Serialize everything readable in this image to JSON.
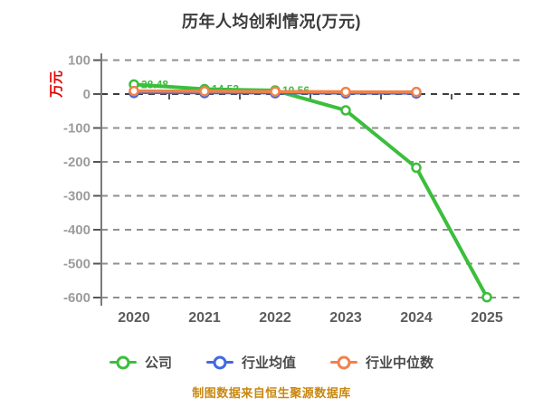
{
  "chart_data": {
    "type": "line",
    "title": "历年人均创利情况(万元)",
    "ylabel": "万元",
    "ylabel_color": "#e60000",
    "footnote": "制图数据来自恒生聚源数据库",
    "footnote_color": "#c8870f",
    "categories": [
      "2020",
      "2021",
      "2022",
      "2023",
      "2024",
      "2025"
    ],
    "ylim": [
      -600,
      100
    ],
    "yticks": [
      100,
      0,
      -100,
      -200,
      -300,
      -400,
      -500,
      -600
    ],
    "grid": "dashed horizontal",
    "legend_position": "bottom",
    "series": [
      {
        "key": "company",
        "name": "公司",
        "color": "#3cbe3c",
        "values": [
          28.48,
          14.53,
          10.56,
          -48.0,
          -217.0,
          -599.0
        ],
        "point_labels": [
          "28.48",
          "14.53",
          "10.56",
          "",
          "",
          ""
        ]
      },
      {
        "key": "industry-average",
        "name": "行业均值",
        "color": "#4169e1",
        "values": [
          3.2,
          2.8,
          2.4,
          2.0,
          1.8,
          null
        ],
        "point_labels": [
          "",
          "",
          "",
          "",
          "",
          ""
        ]
      },
      {
        "key": "industry-median",
        "name": "行业中位数",
        "color": "#f0824b",
        "values": [
          9.0,
          8.2,
          7.4,
          6.5,
          6.2,
          null
        ],
        "point_labels": [
          "",
          "",
          "",
          "",
          "",
          ""
        ]
      }
    ],
    "axis_colors": {
      "y_tick_label": "#9c9c9c",
      "x_tick_label": "#5c5c5c",
      "grid_line": "#8f8f8f",
      "zero_line": "#3d3d3d",
      "axis_line": "#7a7a7a"
    }
  }
}
